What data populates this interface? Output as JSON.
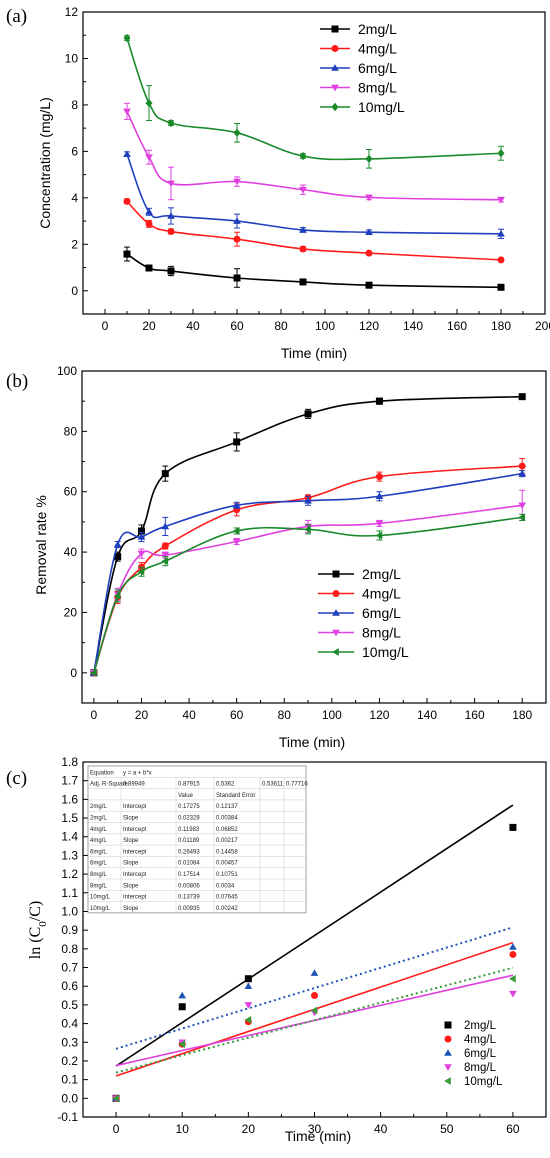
{
  "colors": {
    "s1": "#000000",
    "s2": "#ff1a1a",
    "s3": "#1f3fbf",
    "s4": "#e040e0",
    "s5": "#1a8a2a",
    "dot_blue": "#1f56b5",
    "dot_green": "#3a9a3a"
  },
  "chart_data": [
    {
      "panel": "(a)",
      "type": "line",
      "xlabel": "Time (min)",
      "ylabel": "Concentration (mg/L)",
      "xlim": [
        -10,
        200
      ],
      "ylim": [
        -1,
        12
      ],
      "xticks": [
        0,
        20,
        40,
        60,
        80,
        100,
        120,
        140,
        160,
        180,
        200
      ],
      "yticks": [
        0,
        2,
        4,
        6,
        8,
        10,
        12
      ],
      "legend_position": "top-right",
      "x": [
        10,
        20,
        30,
        60,
        90,
        120,
        180
      ],
      "series": [
        {
          "name": "2mg/L",
          "marker": "square",
          "color": "#000000",
          "values": [
            1.58,
            0.98,
            0.85,
            0.55,
            0.38,
            0.24,
            0.15
          ],
          "errors": [
            0.3,
            0.1,
            0.2,
            0.4,
            0.1,
            0.05,
            0.05
          ]
        },
        {
          "name": "4mg/L",
          "marker": "circle",
          "color": "#ff1a1a",
          "values": [
            3.85,
            2.88,
            2.55,
            2.22,
            1.8,
            1.62,
            1.33
          ],
          "errors": [
            0.1,
            0.15,
            0.1,
            0.3,
            0.1,
            0.05,
            0.05
          ]
        },
        {
          "name": "6mg/L",
          "marker": "triangle-up",
          "color": "#1f3fbf",
          "values": [
            5.88,
            3.4,
            3.22,
            3.0,
            2.62,
            2.52,
            2.45
          ],
          "errors": [
            0.1,
            0.15,
            0.35,
            0.3,
            0.1,
            0.1,
            0.2
          ]
        },
        {
          "name": "8mg/L",
          "marker": "triangle-down",
          "color": "#e040e0",
          "values": [
            7.72,
            5.75,
            4.62,
            4.7,
            4.35,
            4.02,
            3.92
          ],
          "errors": [
            0.35,
            0.3,
            0.7,
            0.2,
            0.2,
            0.1,
            0.1
          ]
        },
        {
          "name": "10mg/L",
          "marker": "diamond",
          "color": "#1a8a2a",
          "values": [
            10.88,
            8.08,
            7.22,
            6.8,
            5.8,
            5.68,
            5.92
          ],
          "errors": [
            0.1,
            0.75,
            0.1,
            0.4,
            0.1,
            0.4,
            0.3
          ]
        }
      ]
    },
    {
      "panel": "(b)",
      "type": "line",
      "xlabel": "Time (min)",
      "ylabel": "Removal rate %",
      "xlim": [
        -5,
        190
      ],
      "ylim": [
        -10,
        100
      ],
      "xticks": [
        0,
        20,
        40,
        60,
        80,
        100,
        120,
        140,
        160,
        180
      ],
      "yticks": [
        0,
        20,
        40,
        60,
        80,
        100
      ],
      "legend_position": "bottom-right",
      "x": [
        0,
        10,
        20,
        30,
        60,
        90,
        120,
        180
      ],
      "series": [
        {
          "name": "2mg/L",
          "marker": "square",
          "color": "#000000",
          "values": [
            0,
            38.5,
            47,
            66,
            76.5,
            85.8,
            90,
            91.5
          ],
          "errors": [
            0,
            1.5,
            2,
            2.5,
            3,
            1.5,
            1,
            0.5
          ]
        },
        {
          "name": "4mg/L",
          "marker": "circle",
          "color": "#ff1a1a",
          "values": [
            0,
            25,
            35,
            42,
            54,
            58,
            65,
            68.5
          ],
          "errors": [
            0,
            2,
            1.5,
            1,
            2,
            1,
            1.5,
            2.5
          ]
        },
        {
          "name": "6mg/L",
          "marker": "triangle-up",
          "color": "#1f3fbf",
          "values": [
            0,
            42.5,
            45,
            48.5,
            55.5,
            57,
            58.5,
            66
          ],
          "errors": [
            0,
            1,
            1.5,
            3,
            1,
            1.5,
            1.5,
            1
          ]
        },
        {
          "name": "8mg/L",
          "marker": "triangle-down",
          "color": "#e040e0",
          "values": [
            0,
            26,
            39.5,
            39,
            43.5,
            48.5,
            49.5,
            55.5
          ],
          "errors": [
            0,
            2,
            1.5,
            1,
            1,
            2,
            1,
            5
          ]
        },
        {
          "name": "10mg/L",
          "marker": "triangle-left",
          "color": "#1a8a2a",
          "values": [
            0,
            25.5,
            33.5,
            37,
            47,
            47.5,
            45.5,
            51.5
          ],
          "errors": [
            0,
            2,
            1.5,
            1.5,
            1,
            1.5,
            1.5,
            1
          ]
        }
      ]
    },
    {
      "panel": "(c)",
      "type": "scatter",
      "xlabel": "Time (min)",
      "xlim": [
        -5,
        65
      ],
      "ylim": [
        -0.1,
        1.8
      ],
      "xticks": [
        0,
        10,
        20,
        30,
        40,
        50,
        60
      ],
      "yticks": [
        -0.1,
        0.0,
        0.1,
        0.2,
        0.3,
        0.4,
        0.5,
        0.6,
        0.7,
        0.8,
        0.9,
        1.0,
        1.1,
        1.2,
        1.3,
        1.4,
        1.5,
        1.6,
        1.7,
        1.8
      ],
      "legend_position": "bottom-right",
      "series": [
        {
          "name": "2mg/L",
          "marker": "square",
          "color": "#000000",
          "x": [
            0,
            10,
            20,
            60
          ],
          "values": [
            0,
            0.49,
            0.64,
            1.45
          ],
          "fit": {
            "intercept": 0.17275,
            "slope": 0.02328,
            "style": "solid"
          }
        },
        {
          "name": "4mg/L",
          "marker": "circle",
          "color": "#ff1a1a",
          "x": [
            0,
            10,
            20,
            30,
            60
          ],
          "values": [
            0,
            0.29,
            0.41,
            0.55,
            0.77
          ],
          "fit": {
            "intercept": 0.11983,
            "slope": 0.01189,
            "style": "solid"
          }
        },
        {
          "name": "6mg/L",
          "marker": "triangle-up",
          "color": "#1f56b5",
          "x": [
            0,
            10,
            20,
            30,
            60
          ],
          "values": [
            0,
            0.55,
            0.6,
            0.67,
            0.81
          ],
          "fit": {
            "intercept": 0.26493,
            "slope": 0.01084,
            "style": "dotted"
          }
        },
        {
          "name": "8mg/L",
          "marker": "triangle-down",
          "color": "#e040e0",
          "x": [
            0,
            10,
            20,
            30,
            60
          ],
          "values": [
            0,
            0.3,
            0.5,
            0.46,
            0.56
          ],
          "fit": {
            "intercept": 0.17514,
            "slope": 0.00806,
            "style": "solid"
          }
        },
        {
          "name": "10mg/L",
          "marker": "triangle-left",
          "color": "#3a9a3a",
          "x": [
            0,
            10,
            20,
            30,
            60
          ],
          "values": [
            0,
            0.29,
            0.42,
            0.47,
            0.64
          ],
          "fit": {
            "intercept": 0.13739,
            "slope": 0.00935,
            "style": "dotted"
          }
        }
      ],
      "fit_table": {
        "rows": [
          [
            "Equation",
            "y = a + b*x",
            "",
            "",
            "",
            ""
          ],
          [
            "Adj. R-Square",
            "0.89949",
            "0.87915",
            "0.5362",
            "0.53611",
            "0.77716"
          ],
          [
            "",
            "",
            "Value",
            "Standard Error",
            "",
            ""
          ],
          [
            "2mg/L",
            "Intercept",
            "0.17275",
            "0.12137",
            "",
            ""
          ],
          [
            "2mg/L",
            "Slope",
            "0.02328",
            "0.00384",
            "",
            ""
          ],
          [
            "4mg/L",
            "Intercept",
            "0.11983",
            "0.06852",
            "",
            ""
          ],
          [
            "4mg/L",
            "Slope",
            "0.01189",
            "0.00217",
            "",
            ""
          ],
          [
            "6mg/L",
            "Intercept",
            "0.26493",
            "0.14458",
            "",
            ""
          ],
          [
            "6mg/L",
            "Slope",
            "0.01084",
            "0.00457",
            "",
            ""
          ],
          [
            "8mg/L",
            "Intercept",
            "0.17514",
            "0.10751",
            "",
            ""
          ],
          [
            "8mg/L",
            "Slope",
            "0.00806",
            "0.0034",
            "",
            ""
          ],
          [
            "10mg/L",
            "Intercept",
            "0.13739",
            "0.07645",
            "",
            ""
          ],
          [
            "10mg/L",
            "Slope",
            "0.00935",
            "0.00242",
            "",
            ""
          ]
        ]
      }
    }
  ]
}
